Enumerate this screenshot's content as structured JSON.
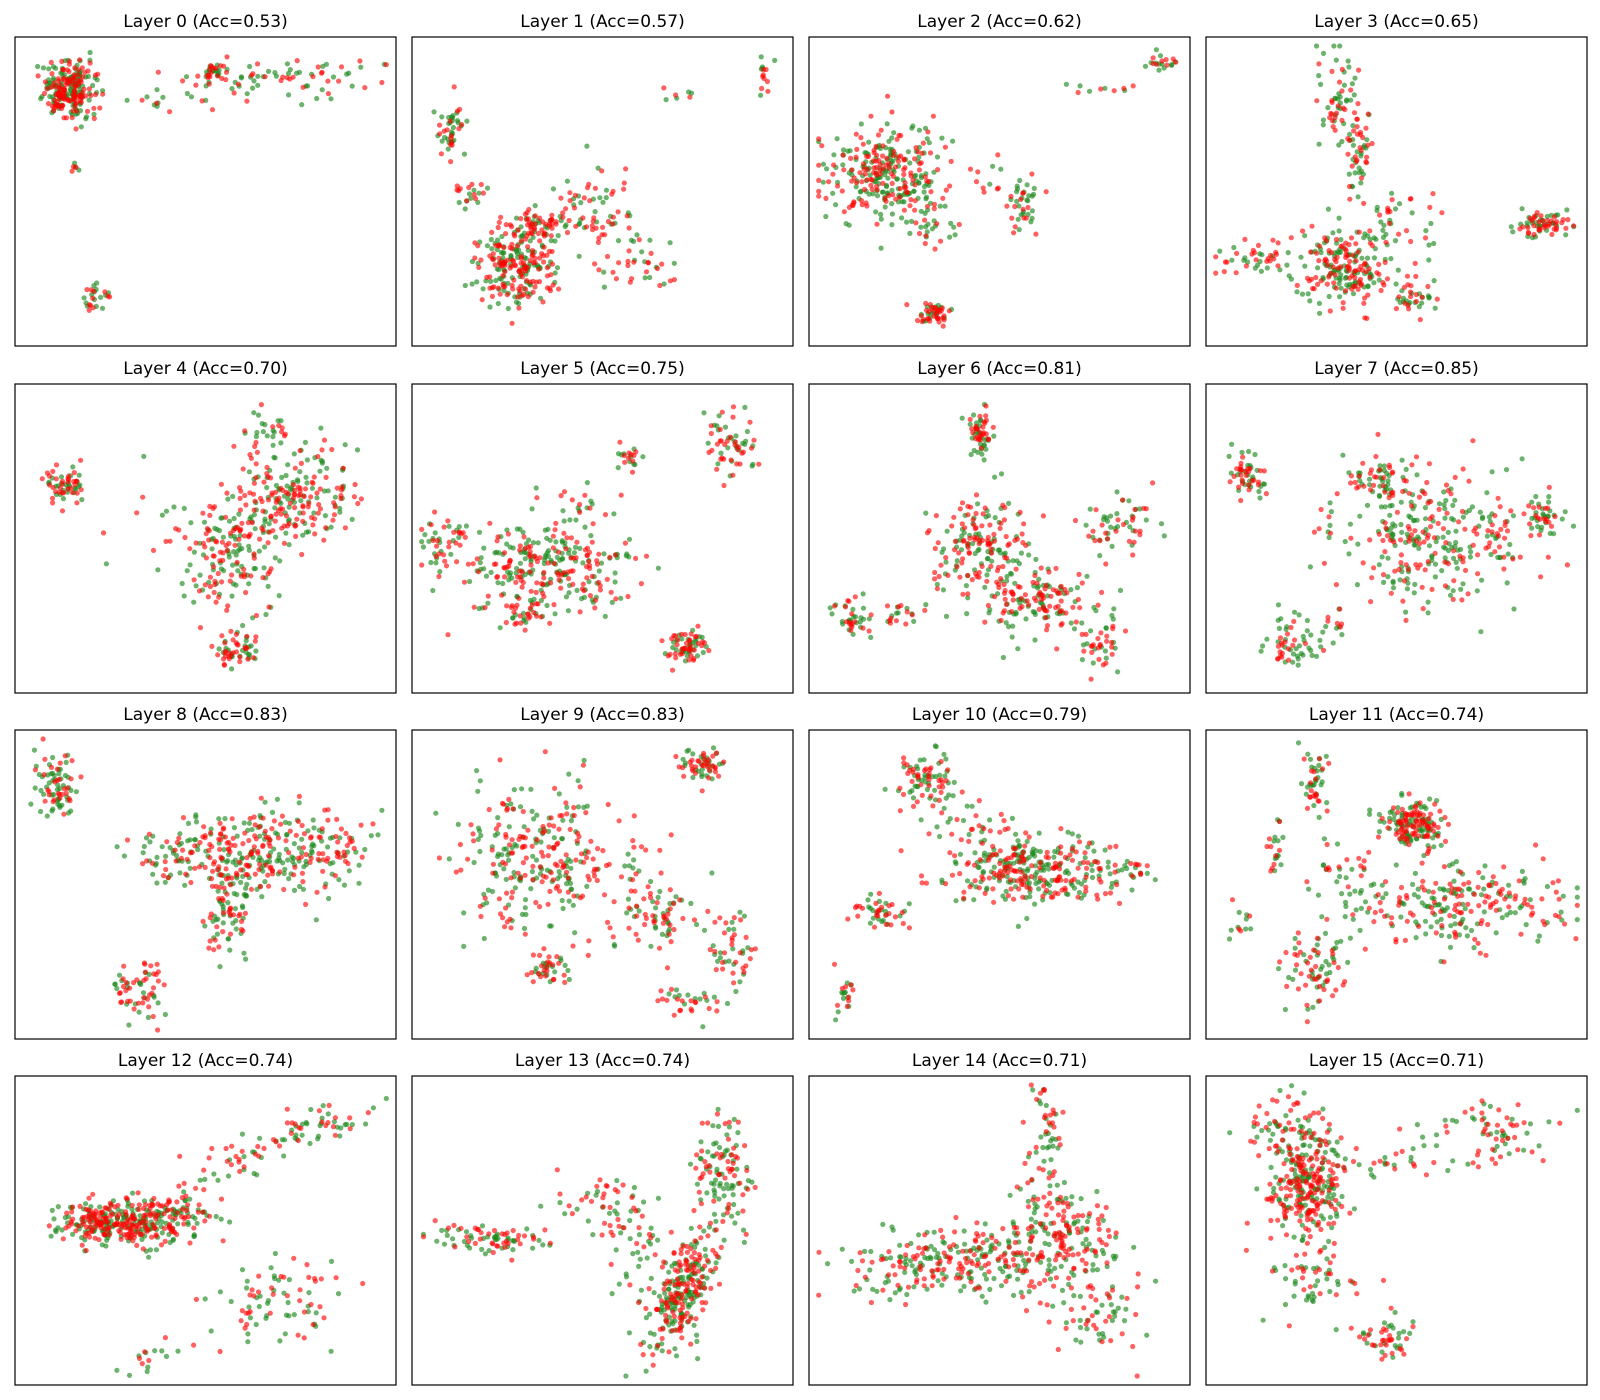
{
  "colors": {
    "red": "#ff0000",
    "green": "#1f8a1f",
    "background": "#ffffff",
    "frame": "#000000"
  },
  "chart_data": [
    {
      "type": "scatter",
      "title": "Layer 0 (Acc=0.53)",
      "xlabel": "",
      "ylabel": "",
      "axes_ticks": "hidden",
      "grid": false,
      "classes": [
        "red",
        "green"
      ],
      "clusters": [
        {
          "cx": 0.13,
          "cy": 0.84,
          "sx": 0.035,
          "sy": 0.05,
          "n": 260
        },
        {
          "cx": 0.52,
          "cy": 0.9,
          "sx": 0.02,
          "sy": 0.012,
          "n": 30
        },
        {
          "cx": 0.74,
          "cy": 0.88,
          "sx": 0.12,
          "sy": 0.03,
          "n": 70
        },
        {
          "cx": 0.4,
          "cy": 0.83,
          "sx": 0.08,
          "sy": 0.04,
          "n": 18
        },
        {
          "cx": 0.2,
          "cy": 0.14,
          "sx": 0.02,
          "sy": 0.03,
          "n": 25
        },
        {
          "cx": 0.14,
          "cy": 0.58,
          "sx": 0.01,
          "sy": 0.01,
          "n": 6
        }
      ]
    },
    {
      "type": "scatter",
      "title": "Layer 1 (Acc=0.57)",
      "xlabel": "",
      "ylabel": "",
      "axes_ticks": "hidden",
      "grid": false,
      "classes": [
        "red",
        "green"
      ],
      "clusters": [
        {
          "cx": 0.27,
          "cy": 0.25,
          "sx": 0.06,
          "sy": 0.07,
          "n": 230
        },
        {
          "cx": 0.33,
          "cy": 0.38,
          "sx": 0.035,
          "sy": 0.03,
          "n": 60
        },
        {
          "cx": 0.09,
          "cy": 0.71,
          "sx": 0.02,
          "sy": 0.05,
          "n": 45
        },
        {
          "cx": 0.47,
          "cy": 0.45,
          "sx": 0.06,
          "sy": 0.07,
          "n": 70
        },
        {
          "cx": 0.6,
          "cy": 0.25,
          "sx": 0.05,
          "sy": 0.04,
          "n": 35
        },
        {
          "cx": 0.13,
          "cy": 0.49,
          "sx": 0.03,
          "sy": 0.02,
          "n": 20
        },
        {
          "cx": 0.94,
          "cy": 0.9,
          "sx": 0.012,
          "sy": 0.04,
          "n": 14
        },
        {
          "cx": 0.71,
          "cy": 0.83,
          "sx": 0.025,
          "sy": 0.01,
          "n": 7
        }
      ]
    },
    {
      "type": "scatter",
      "title": "Layer 2 (Acc=0.62)",
      "xlabel": "",
      "ylabel": "",
      "axes_ticks": "hidden",
      "grid": false,
      "classes": [
        "red",
        "green"
      ],
      "clusters": [
        {
          "cx": 0.19,
          "cy": 0.56,
          "sx": 0.075,
          "sy": 0.08,
          "n": 300
        },
        {
          "cx": 0.32,
          "cy": 0.4,
          "sx": 0.03,
          "sy": 0.06,
          "n": 30
        },
        {
          "cx": 0.32,
          "cy": 0.09,
          "sx": 0.022,
          "sy": 0.02,
          "n": 50
        },
        {
          "cx": 0.56,
          "cy": 0.45,
          "sx": 0.02,
          "sy": 0.05,
          "n": 40
        },
        {
          "cx": 0.94,
          "cy": 0.94,
          "sx": 0.02,
          "sy": 0.015,
          "n": 20
        },
        {
          "cx": 0.76,
          "cy": 0.85,
          "sx": 0.04,
          "sy": 0.012,
          "n": 10
        },
        {
          "cx": 0.5,
          "cy": 0.55,
          "sx": 0.05,
          "sy": 0.05,
          "n": 12
        }
      ]
    },
    {
      "type": "scatter",
      "title": "Layer 3 (Acc=0.65)",
      "xlabel": "",
      "ylabel": "",
      "axes_ticks": "hidden",
      "grid": false,
      "classes": [
        "red",
        "green"
      ],
      "clusters": [
        {
          "cx": 0.37,
          "cy": 0.25,
          "sx": 0.06,
          "sy": 0.06,
          "n": 200
        },
        {
          "cx": 0.34,
          "cy": 0.82,
          "sx": 0.025,
          "sy": 0.08,
          "n": 60
        },
        {
          "cx": 0.4,
          "cy": 0.65,
          "sx": 0.02,
          "sy": 0.06,
          "n": 50
        },
        {
          "cx": 0.54,
          "cy": 0.15,
          "sx": 0.03,
          "sy": 0.04,
          "n": 40
        },
        {
          "cx": 0.9,
          "cy": 0.39,
          "sx": 0.035,
          "sy": 0.02,
          "n": 70
        },
        {
          "cx": 0.12,
          "cy": 0.28,
          "sx": 0.06,
          "sy": 0.04,
          "n": 45
        },
        {
          "cx": 0.5,
          "cy": 0.4,
          "sx": 0.06,
          "sy": 0.06,
          "n": 40
        }
      ]
    },
    {
      "type": "scatter",
      "title": "Layer 4 (Acc=0.70)",
      "xlabel": "",
      "ylabel": "",
      "axes_ticks": "hidden",
      "grid": false,
      "classes": [
        "red",
        "green"
      ],
      "clusters": [
        {
          "cx": 0.75,
          "cy": 0.65,
          "sx": 0.08,
          "sy": 0.08,
          "n": 200
        },
        {
          "cx": 0.58,
          "cy": 0.43,
          "sx": 0.07,
          "sy": 0.1,
          "n": 150
        },
        {
          "cx": 0.12,
          "cy": 0.68,
          "sx": 0.025,
          "sy": 0.03,
          "n": 60
        },
        {
          "cx": 0.58,
          "cy": 0.12,
          "sx": 0.035,
          "sy": 0.03,
          "n": 55
        },
        {
          "cx": 0.5,
          "cy": 0.55,
          "sx": 0.1,
          "sy": 0.1,
          "n": 40
        },
        {
          "cx": 0.67,
          "cy": 0.87,
          "sx": 0.04,
          "sy": 0.04,
          "n": 25
        }
      ]
    },
    {
      "type": "scatter",
      "title": "Layer 5 (Acc=0.75)",
      "xlabel": "",
      "ylabel": "",
      "axes_ticks": "hidden",
      "grid": false,
      "classes": [
        "red",
        "green"
      ],
      "clusters": [
        {
          "cx": 0.34,
          "cy": 0.4,
          "sx": 0.12,
          "sy": 0.07,
          "n": 280
        },
        {
          "cx": 0.07,
          "cy": 0.5,
          "sx": 0.03,
          "sy": 0.04,
          "n": 40
        },
        {
          "cx": 0.72,
          "cy": 0.14,
          "sx": 0.03,
          "sy": 0.03,
          "n": 70
        },
        {
          "cx": 0.85,
          "cy": 0.83,
          "sx": 0.04,
          "sy": 0.06,
          "n": 60
        },
        {
          "cx": 0.57,
          "cy": 0.77,
          "sx": 0.02,
          "sy": 0.02,
          "n": 20
        },
        {
          "cx": 0.45,
          "cy": 0.62,
          "sx": 0.07,
          "sy": 0.05,
          "n": 25
        },
        {
          "cx": 0.3,
          "cy": 0.25,
          "sx": 0.03,
          "sy": 0.03,
          "n": 30
        }
      ]
    },
    {
      "type": "scatter",
      "title": "Layer 6 (Acc=0.81)",
      "xlabel": "",
      "ylabel": "",
      "axes_ticks": "hidden",
      "grid": false,
      "classes": [
        "red",
        "green"
      ],
      "clusters": [
        {
          "cx": 0.45,
          "cy": 0.47,
          "sx": 0.06,
          "sy": 0.08,
          "n": 160
        },
        {
          "cx": 0.6,
          "cy": 0.3,
          "sx": 0.08,
          "sy": 0.07,
          "n": 160
        },
        {
          "cx": 0.45,
          "cy": 0.85,
          "sx": 0.018,
          "sy": 0.04,
          "n": 60
        },
        {
          "cx": 0.83,
          "cy": 0.55,
          "sx": 0.05,
          "sy": 0.05,
          "n": 55
        },
        {
          "cx": 0.1,
          "cy": 0.23,
          "sx": 0.03,
          "sy": 0.04,
          "n": 40
        },
        {
          "cx": 0.22,
          "cy": 0.25,
          "sx": 0.03,
          "sy": 0.02,
          "n": 20
        },
        {
          "cx": 0.78,
          "cy": 0.13,
          "sx": 0.03,
          "sy": 0.05,
          "n": 40
        }
      ]
    },
    {
      "type": "scatter",
      "title": "Layer 7 (Acc=0.85)",
      "xlabel": "",
      "ylabel": "",
      "axes_ticks": "hidden",
      "grid": false,
      "classes": [
        "red",
        "green"
      ],
      "clusters": [
        {
          "cx": 0.6,
          "cy": 0.5,
          "sx": 0.14,
          "sy": 0.12,
          "n": 300
        },
        {
          "cx": 0.46,
          "cy": 0.7,
          "sx": 0.05,
          "sy": 0.05,
          "n": 60
        },
        {
          "cx": 0.1,
          "cy": 0.7,
          "sx": 0.025,
          "sy": 0.04,
          "n": 55
        },
        {
          "cx": 0.89,
          "cy": 0.57,
          "sx": 0.03,
          "sy": 0.04,
          "n": 45
        },
        {
          "cx": 0.22,
          "cy": 0.15,
          "sx": 0.04,
          "sy": 0.05,
          "n": 55
        },
        {
          "cx": 0.33,
          "cy": 0.21,
          "sx": 0.02,
          "sy": 0.03,
          "n": 12
        }
      ]
    },
    {
      "type": "scatter",
      "title": "Layer 8 (Acc=0.83)",
      "xlabel": "",
      "ylabel": "",
      "axes_ticks": "hidden",
      "grid": false,
      "classes": [
        "red",
        "green"
      ],
      "clusters": [
        {
          "cx": 0.66,
          "cy": 0.61,
          "sx": 0.12,
          "sy": 0.08,
          "n": 280
        },
        {
          "cx": 0.56,
          "cy": 0.4,
          "sx": 0.03,
          "sy": 0.09,
          "n": 80
        },
        {
          "cx": 0.42,
          "cy": 0.6,
          "sx": 0.06,
          "sy": 0.05,
          "n": 60
        },
        {
          "cx": 0.1,
          "cy": 0.84,
          "sx": 0.03,
          "sy": 0.06,
          "n": 80
        },
        {
          "cx": 0.32,
          "cy": 0.14,
          "sx": 0.04,
          "sy": 0.05,
          "n": 60
        },
        {
          "cx": 0.88,
          "cy": 0.62,
          "sx": 0.04,
          "sy": 0.05,
          "n": 25
        }
      ]
    },
    {
      "type": "scatter",
      "title": "Layer 9 (Acc=0.83)",
      "xlabel": "",
      "ylabel": "",
      "axes_ticks": "hidden",
      "grid": false,
      "classes": [
        "red",
        "green"
      ],
      "clusters": [
        {
          "cx": 0.3,
          "cy": 0.6,
          "sx": 0.1,
          "sy": 0.12,
          "n": 260
        },
        {
          "cx": 0.77,
          "cy": 0.9,
          "sx": 0.03,
          "sy": 0.03,
          "n": 60
        },
        {
          "cx": 0.65,
          "cy": 0.38,
          "sx": 0.04,
          "sy": 0.05,
          "n": 50
        },
        {
          "cx": 0.84,
          "cy": 0.27,
          "sx": 0.035,
          "sy": 0.07,
          "n": 50
        },
        {
          "cx": 0.36,
          "cy": 0.22,
          "sx": 0.03,
          "sy": 0.03,
          "n": 40
        },
        {
          "cx": 0.73,
          "cy": 0.11,
          "sx": 0.04,
          "sy": 0.03,
          "n": 30
        },
        {
          "cx": 0.55,
          "cy": 0.5,
          "sx": 0.08,
          "sy": 0.1,
          "n": 60
        }
      ]
    },
    {
      "type": "scatter",
      "title": "Layer 10 (Acc=0.79)",
      "xlabel": "",
      "ylabel": "",
      "axes_ticks": "hidden",
      "grid": false,
      "classes": [
        "red",
        "green"
      ],
      "clusters": [
        {
          "cx": 0.58,
          "cy": 0.55,
          "sx": 0.11,
          "sy": 0.06,
          "n": 320
        },
        {
          "cx": 0.3,
          "cy": 0.85,
          "sx": 0.04,
          "sy": 0.05,
          "n": 80
        },
        {
          "cx": 0.18,
          "cy": 0.4,
          "sx": 0.04,
          "sy": 0.03,
          "n": 45
        },
        {
          "cx": 0.08,
          "cy": 0.14,
          "sx": 0.015,
          "sy": 0.04,
          "n": 20
        },
        {
          "cx": 0.85,
          "cy": 0.55,
          "sx": 0.05,
          "sy": 0.02,
          "n": 25
        },
        {
          "cx": 0.42,
          "cy": 0.7,
          "sx": 0.06,
          "sy": 0.05,
          "n": 25
        }
      ]
    },
    {
      "type": "scatter",
      "title": "Layer 11 (Acc=0.74)",
      "xlabel": "",
      "ylabel": "",
      "axes_ticks": "hidden",
      "grid": false,
      "classes": [
        "red",
        "green"
      ],
      "clusters": [
        {
          "cx": 0.55,
          "cy": 0.7,
          "sx": 0.04,
          "sy": 0.04,
          "n": 170
        },
        {
          "cx": 0.65,
          "cy": 0.43,
          "sx": 0.16,
          "sy": 0.07,
          "n": 250
        },
        {
          "cx": 0.28,
          "cy": 0.22,
          "sx": 0.05,
          "sy": 0.07,
          "n": 80
        },
        {
          "cx": 0.28,
          "cy": 0.85,
          "sx": 0.02,
          "sy": 0.06,
          "n": 45
        },
        {
          "cx": 0.18,
          "cy": 0.62,
          "sx": 0.015,
          "sy": 0.05,
          "n": 20
        },
        {
          "cx": 0.08,
          "cy": 0.37,
          "sx": 0.02,
          "sy": 0.04,
          "n": 12
        },
        {
          "cx": 0.35,
          "cy": 0.55,
          "sx": 0.05,
          "sy": 0.05,
          "n": 20
        }
      ]
    },
    {
      "type": "scatter",
      "title": "Layer 12 (Acc=0.74)",
      "xlabel": "",
      "ylabel": "",
      "axes_ticks": "hidden",
      "grid": false,
      "classes": [
        "red",
        "green"
      ],
      "clusters": [
        {
          "cx": 0.28,
          "cy": 0.53,
          "sx": 0.1,
          "sy": 0.04,
          "n": 380
        },
        {
          "cx": 0.7,
          "cy": 0.25,
          "sx": 0.1,
          "sy": 0.07,
          "n": 80,
          "rot": 0.45
        },
        {
          "cx": 0.8,
          "cy": 0.85,
          "sx": 0.1,
          "sy": 0.03,
          "n": 60,
          "rot": 0.3
        },
        {
          "cx": 0.57,
          "cy": 0.72,
          "sx": 0.07,
          "sy": 0.03,
          "n": 25,
          "rot": 0.3
        },
        {
          "cx": 0.34,
          "cy": 0.07,
          "sx": 0.05,
          "sy": 0.02,
          "n": 15,
          "rot": 0.5
        },
        {
          "cx": 0.45,
          "cy": 0.6,
          "sx": 0.04,
          "sy": 0.05,
          "n": 30
        }
      ]
    },
    {
      "type": "scatter",
      "title": "Layer 13 (Acc=0.74)",
      "xlabel": "",
      "ylabel": "",
      "axes_ticks": "hidden",
      "grid": false,
      "classes": [
        "red",
        "green"
      ],
      "clusters": [
        {
          "cx": 0.72,
          "cy": 0.3,
          "sx": 0.045,
          "sy": 0.12,
          "n": 280,
          "rot": -0.3
        },
        {
          "cx": 0.83,
          "cy": 0.7,
          "sx": 0.04,
          "sy": 0.09,
          "n": 110,
          "rot": 0.2
        },
        {
          "cx": 0.2,
          "cy": 0.47,
          "sx": 0.09,
          "sy": 0.025,
          "n": 80,
          "rot": -0.1
        },
        {
          "cx": 0.5,
          "cy": 0.6,
          "sx": 0.06,
          "sy": 0.05,
          "n": 40
        },
        {
          "cx": 0.58,
          "cy": 0.45,
          "sx": 0.05,
          "sy": 0.08,
          "n": 40
        }
      ]
    },
    {
      "type": "scatter",
      "title": "Layer 14 (Acc=0.71)",
      "xlabel": "",
      "ylabel": "",
      "axes_ticks": "hidden",
      "grid": false,
      "classes": [
        "red",
        "green"
      ],
      "clusters": [
        {
          "cx": 0.5,
          "cy": 0.4,
          "sx": 0.13,
          "sy": 0.06,
          "n": 220
        },
        {
          "cx": 0.25,
          "cy": 0.37,
          "sx": 0.1,
          "sy": 0.06,
          "n": 90
        },
        {
          "cx": 0.7,
          "cy": 0.5,
          "sx": 0.07,
          "sy": 0.07,
          "n": 110
        },
        {
          "cx": 0.62,
          "cy": 0.85,
          "sx": 0.025,
          "sy": 0.07,
          "n": 45
        },
        {
          "cx": 0.77,
          "cy": 0.25,
          "sx": 0.06,
          "sy": 0.08,
          "n": 70
        },
        {
          "cx": 0.6,
          "cy": 0.62,
          "sx": 0.03,
          "sy": 0.06,
          "n": 25
        }
      ]
    },
    {
      "type": "scatter",
      "title": "Layer 15 (Acc=0.71)",
      "xlabel": "",
      "ylabel": "",
      "axes_ticks": "hidden",
      "grid": false,
      "classes": [
        "red",
        "green"
      ],
      "clusters": [
        {
          "cx": 0.26,
          "cy": 0.65,
          "sx": 0.05,
          "sy": 0.08,
          "n": 280
        },
        {
          "cx": 0.2,
          "cy": 0.85,
          "sx": 0.06,
          "sy": 0.06,
          "n": 80
        },
        {
          "cx": 0.28,
          "cy": 0.35,
          "sx": 0.06,
          "sy": 0.08,
          "n": 60
        },
        {
          "cx": 0.48,
          "cy": 0.14,
          "sx": 0.05,
          "sy": 0.04,
          "n": 50
        },
        {
          "cx": 0.75,
          "cy": 0.83,
          "sx": 0.1,
          "sy": 0.06,
          "n": 70,
          "rot": 0.3
        },
        {
          "cx": 0.5,
          "cy": 0.73,
          "sx": 0.06,
          "sy": 0.03,
          "n": 25
        }
      ]
    }
  ]
}
